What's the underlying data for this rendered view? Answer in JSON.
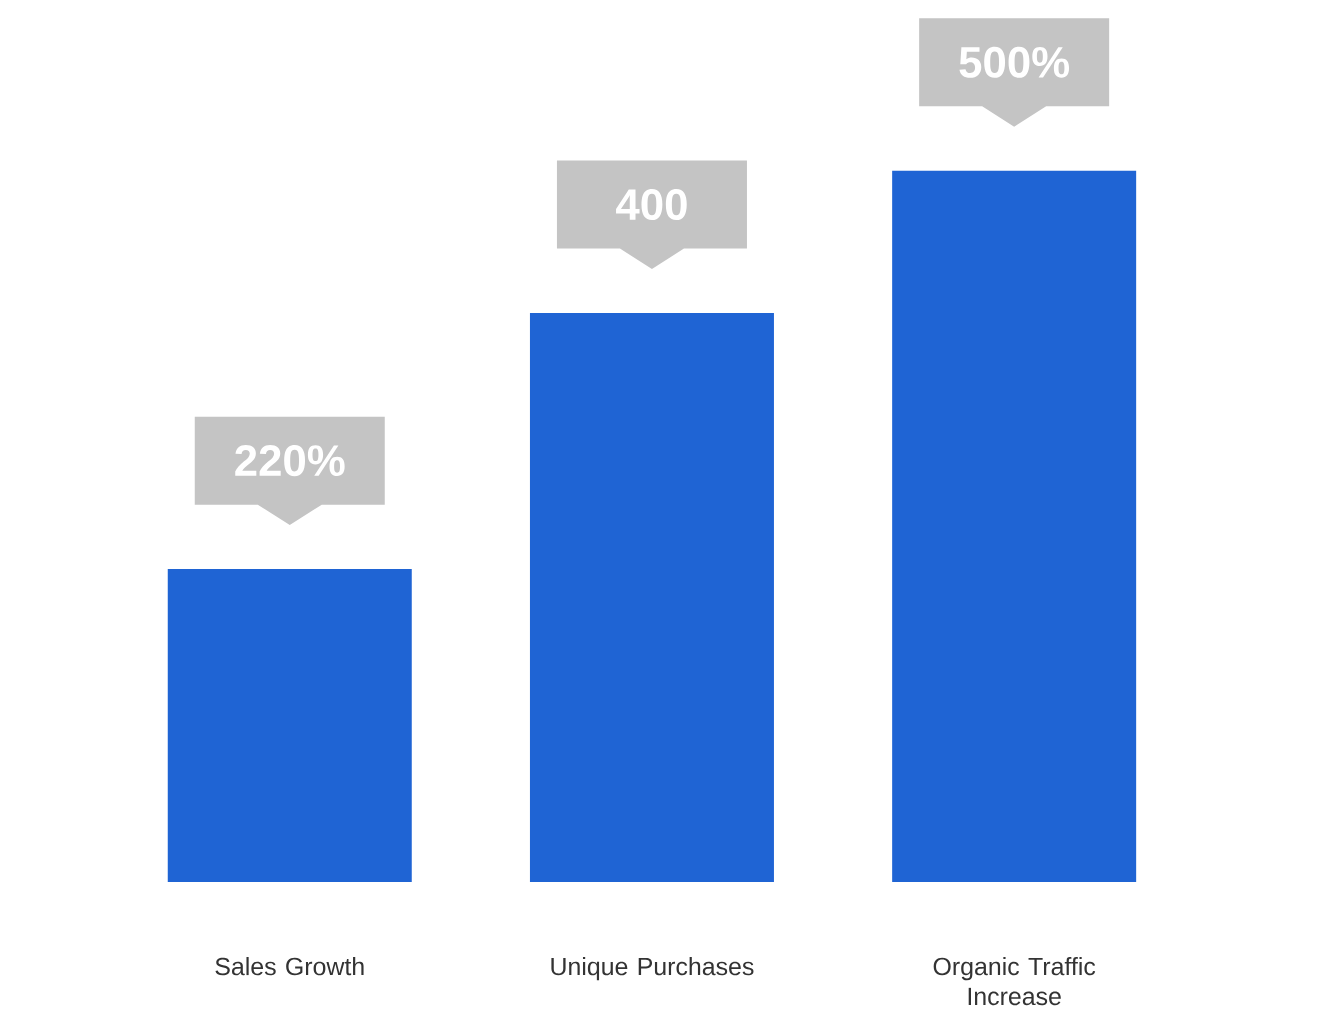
{
  "chart_data": {
    "type": "bar",
    "categories": [
      "Sales Growth",
      "Unique Purchases",
      "Organic Traffic Increase"
    ],
    "values": [
      220,
      400,
      500
    ],
    "value_labels": [
      "220%",
      "400",
      "500%"
    ],
    "color": "#1f64d4"
  }
}
